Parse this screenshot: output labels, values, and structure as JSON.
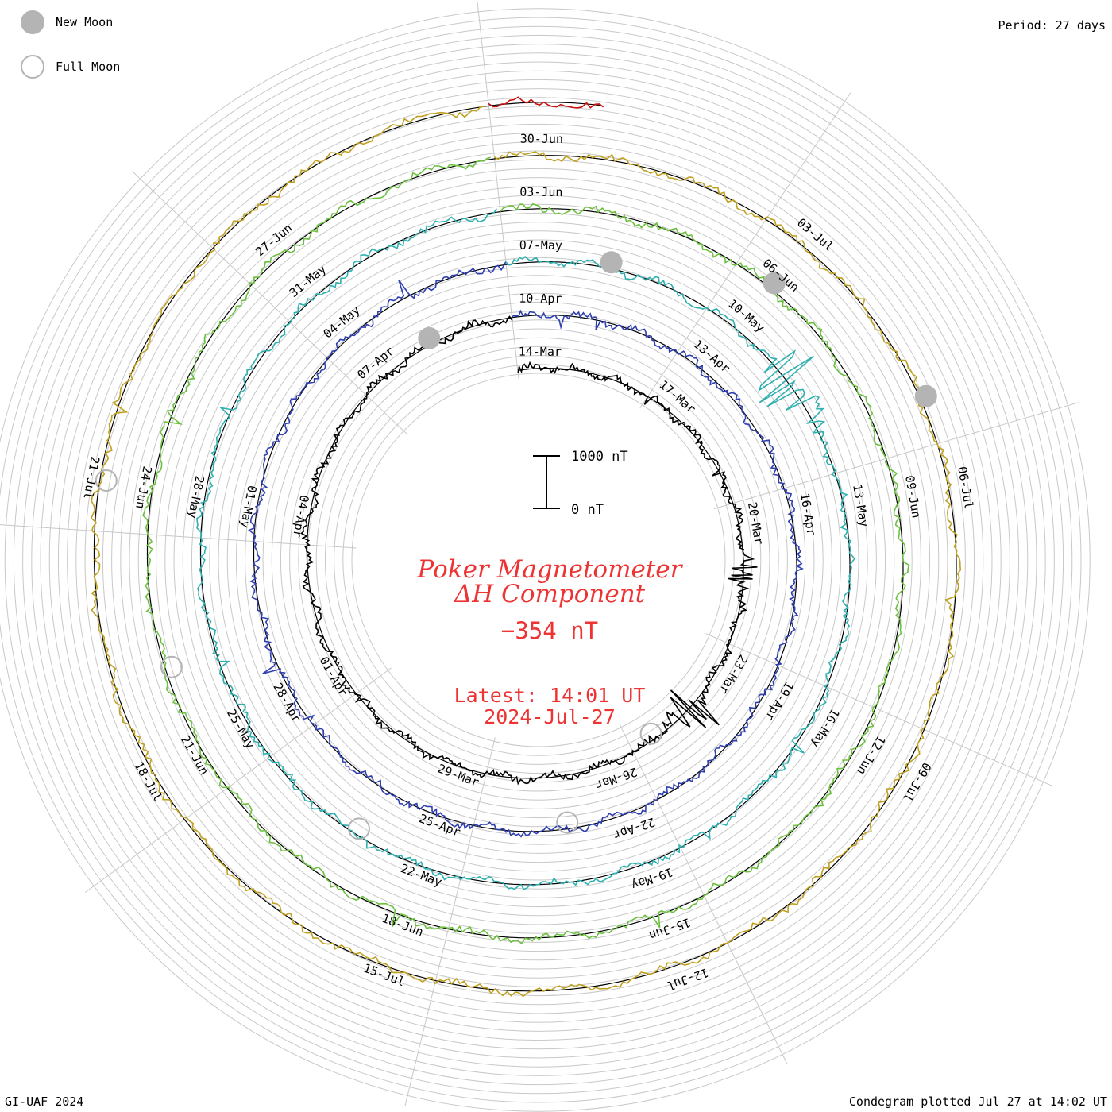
{
  "legend": {
    "new_moon": "New Moon",
    "full_moon": "Full Moon"
  },
  "period_label": "Period: 27 days",
  "footer_left": "GI-UAF 2024",
  "footer_right": "Condegram plotted Jul 27 at 14:02 UT",
  "colors": {
    "grid": "#c8c8c8",
    "reference_ring": "#000000",
    "moon_fill": "#b4b4b4",
    "title": "#ee3333",
    "series": [
      "#000000",
      "#1a1a8c",
      "#2e3fb0",
      "#2f80c0",
      "#2fb0b0",
      "#3cc090",
      "#6cc040",
      "#b0b820",
      "#c0a020",
      "#d06010",
      "#c81010"
    ]
  },
  "chart_data": {
    "type": "condegram",
    "title_line1": "Poker Magnetometer",
    "title_line2": "ΔH Component",
    "current_value": "−354 nT",
    "latest_line1": "Latest: 14:01 UT",
    "latest_line2": "2024-Jul-27",
    "scale_top": "1000 nT",
    "scale_bottom": "0 nT",
    "period_days": 27,
    "date_labels": [
      "14-Mar",
      "17-Mar",
      "20-Mar",
      "23-Mar",
      "26-Mar",
      "29-Mar",
      "01-Apr",
      "04-Apr",
      "07-Apr",
      "10-Apr",
      "13-Apr",
      "16-Apr",
      "19-Apr",
      "22-Apr",
      "25-Apr",
      "28-Apr",
      "01-May",
      "04-May",
      "07-May",
      "10-May",
      "13-May",
      "16-May",
      "19-May",
      "22-May",
      "25-May",
      "28-May",
      "31-May",
      "03-Jun",
      "06-Jun",
      "09-Jun",
      "12-Jun",
      "15-Jun",
      "18-Jun",
      "21-Jun",
      "24-Jun",
      "27-Jun",
      "30-Jun",
      "03-Jul",
      "06-Jul",
      "09-Jul",
      "12-Jul",
      "15-Jul",
      "18-Jul",
      "21-Jul"
    ],
    "new_moon_dates": [
      "2024-04-08",
      "2024-05-08",
      "2024-06-06",
      "2024-07-05"
    ],
    "full_moon_dates": [
      "2024-03-25",
      "2024-04-23",
      "2024-05-23",
      "2024-06-22",
      "2024-07-21"
    ],
    "storms": [
      {
        "date": "2024-03-24",
        "peak_nT": -1600
      },
      {
        "date": "2024-05-11",
        "peak_nT": 2600
      },
      {
        "date": "2024-03-21",
        "peak_nT": -900
      }
    ]
  }
}
